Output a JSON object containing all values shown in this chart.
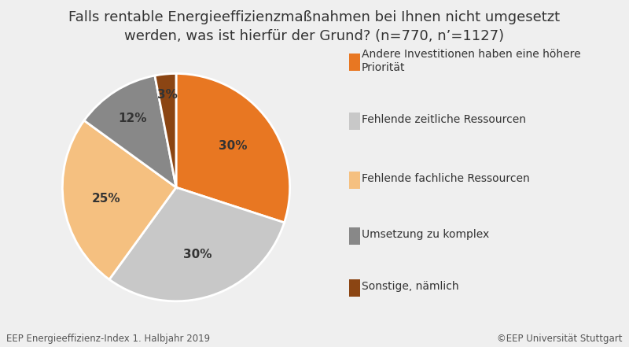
{
  "title": "Falls rentable Energieeffizienzmaßnahmen bei Ihnen nicht umgesetzt\nwerden, was ist hierfür der Grund? (n=770, n’=1127)",
  "slices": [
    30,
    30,
    25,
    12,
    3
  ],
  "labels": [
    "30%",
    "30%",
    "25%",
    "12%",
    "3%"
  ],
  "colors": [
    "#E87722",
    "#C8C8C8",
    "#F5C080",
    "#888888",
    "#8B4513"
  ],
  "legend_labels": [
    "Andere Investitionen haben eine höhere\nPriorität",
    "Fehlende zeitliche Ressourcen",
    "Fehlende fachliche Ressourcen",
    "Umsetzung zu komplex",
    "Sonstige, nämlich"
  ],
  "legend_colors": [
    "#E87722",
    "#C8C8C8",
    "#F5C080",
    "#888888",
    "#8B4513"
  ],
  "footer_left": "EEP Energieeffizienz-Index 1. Halbjahr 2019",
  "footer_right": "©EEP Universität Stuttgart",
  "background_color": "#EFEFEF",
  "title_fontsize": 13,
  "label_fontsize": 11,
  "legend_fontsize": 10,
  "footer_fontsize": 8.5,
  "startangle": 90
}
